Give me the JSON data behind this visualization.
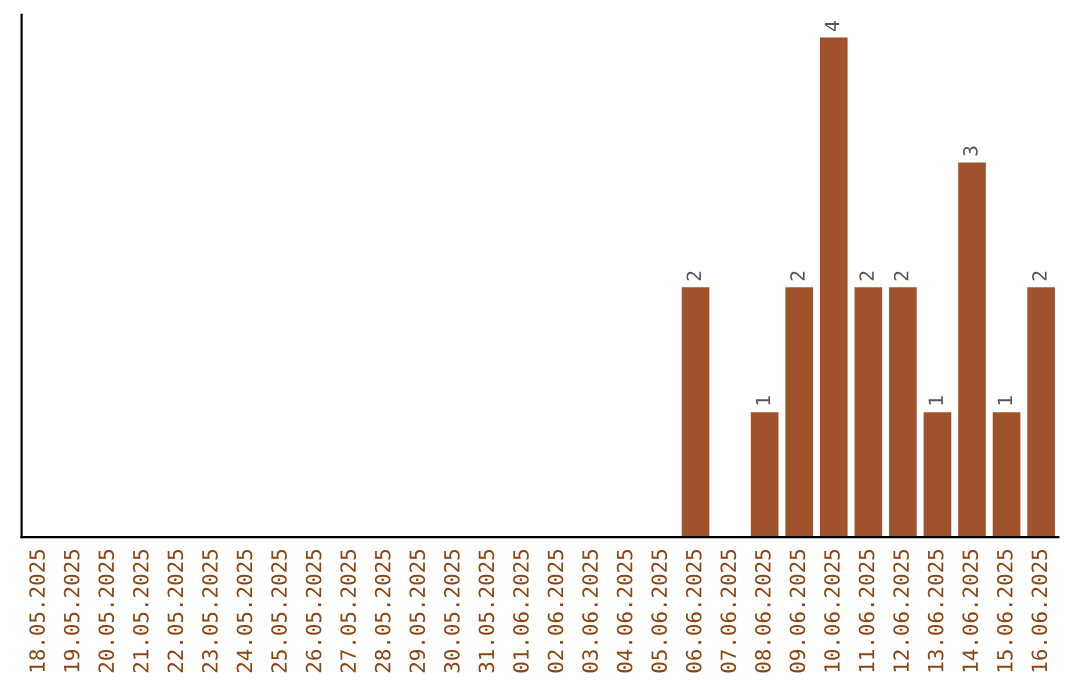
{
  "chart_data": {
    "type": "bar",
    "categories": [
      "18.05.2025",
      "19.05.2025",
      "20.05.2025",
      "21.05.2025",
      "22.05.2025",
      "23.05.2025",
      "24.05.2025",
      "25.05.2025",
      "26.05.2025",
      "27.05.2025",
      "28.05.2025",
      "29.05.2025",
      "30.05.2025",
      "31.05.2025",
      "01.06.2025",
      "02.06.2025",
      "03.06.2025",
      "04.06.2025",
      "05.06.2025",
      "06.06.2025",
      "07.06.2025",
      "08.06.2025",
      "09.06.2025",
      "10.06.2025",
      "11.06.2025",
      "12.06.2025",
      "13.06.2025",
      "14.06.2025",
      "15.06.2025",
      "16.06.2025"
    ],
    "values": [
      null,
      null,
      null,
      null,
      null,
      null,
      null,
      null,
      null,
      null,
      null,
      null,
      null,
      null,
      null,
      null,
      null,
      null,
      null,
      2,
      null,
      1,
      2,
      4,
      2,
      2,
      1,
      3,
      1,
      2
    ],
    "data_labels": true,
    "color": "#a0522d",
    "tick_labels": "x"
  }
}
